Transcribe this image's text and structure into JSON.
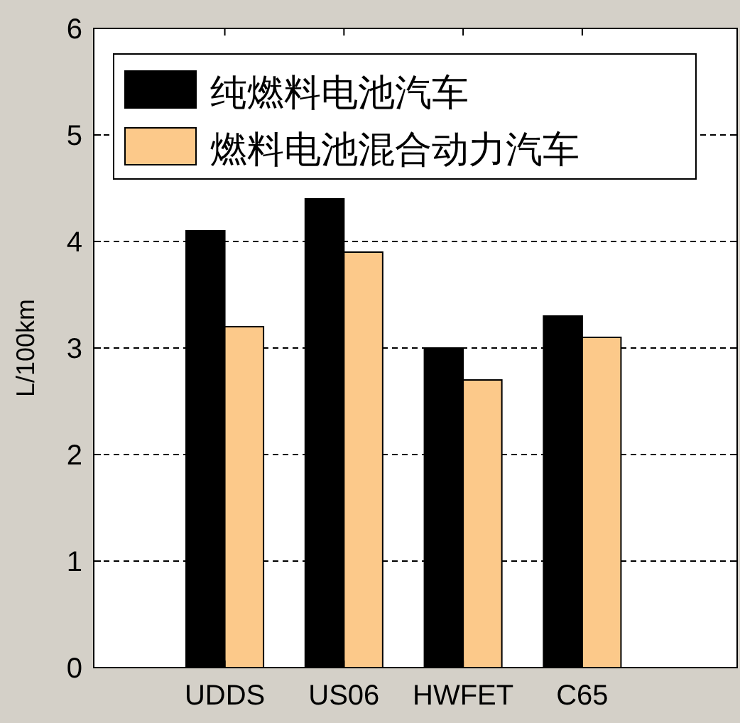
{
  "chart_data": {
    "type": "bar",
    "ylabel": "L/100km",
    "categories": [
      "UDDS",
      "US06",
      "HWFET",
      "C65"
    ],
    "series": [
      {
        "name": "纯燃料电池汽车",
        "color": "#000000",
        "values": [
          4.1,
          4.4,
          3.0,
          3.3
        ]
      },
      {
        "name": "燃料电池混合动力汽车",
        "color": "#fcc98a",
        "values": [
          3.2,
          3.9,
          2.7,
          3.1
        ]
      }
    ],
    "ylim": [
      0,
      6
    ],
    "yticks": [
      0,
      1,
      2,
      3,
      4,
      5,
      6
    ],
    "grid": "y",
    "legend": "top"
  }
}
